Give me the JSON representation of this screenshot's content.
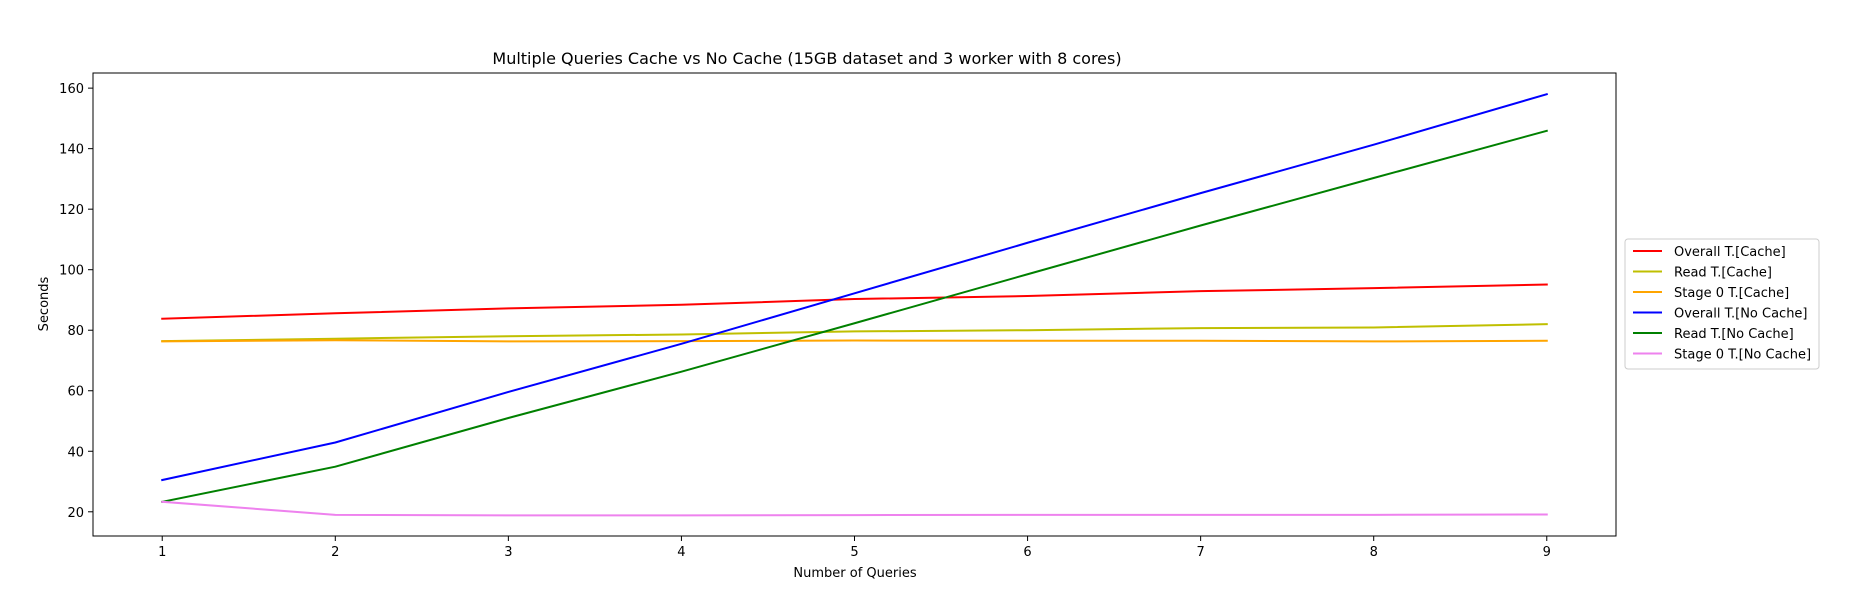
{
  "chart_data": {
    "type": "line",
    "title": "Multiple Queries Cache vs No Cache (15GB dataset and 3 worker with 8 cores)",
    "xlabel": "Number of Queries",
    "ylabel": "Seconds",
    "x": [
      1,
      2,
      3,
      4,
      5,
      6,
      7,
      8,
      9
    ],
    "xlim": [
      0.6,
      9.4
    ],
    "ylim": [
      12,
      165
    ],
    "xticks": [
      "1",
      "2",
      "3",
      "4",
      "5",
      "6",
      "7",
      "8",
      "9"
    ],
    "yticks": [
      "20",
      "40",
      "60",
      "80",
      "100",
      "120",
      "140",
      "160"
    ],
    "grid": false,
    "legend_position": "center-right-outside",
    "series": [
      {
        "name": "Overall T.[Cache]",
        "color": "#ff0000",
        "values": [
          83.8,
          85.6,
          87.2,
          88.4,
          90.3,
          91.3,
          92.9,
          93.9,
          95.1
        ]
      },
      {
        "name": "Read T.[Cache]",
        "color": "#bfbf00",
        "values": [
          76.4,
          77.2,
          78.0,
          78.6,
          79.6,
          80.0,
          80.7,
          80.9,
          82.0
        ]
      },
      {
        "name": "Stage 0 T.[Cache]",
        "color": "#ffa500",
        "values": [
          76.3,
          76.7,
          76.3,
          76.4,
          76.6,
          76.5,
          76.5,
          76.3,
          76.5
        ]
      },
      {
        "name": "Overall T.[No Cache]",
        "color": "#0000ff",
        "values": [
          30.5,
          42.9,
          59.6,
          75.5,
          92.2,
          108.9,
          125.3,
          141.3,
          158.0
        ]
      },
      {
        "name": "Read T.[No Cache]",
        "color": "#008000",
        "values": [
          23.3,
          34.9,
          51.0,
          66.3,
          82.3,
          98.5,
          114.6,
          130.3,
          145.9
        ]
      },
      {
        "name": "Stage 0 T.[No Cache]",
        "color": "#ee82ee",
        "values": [
          23.3,
          19.0,
          18.8,
          18.8,
          18.9,
          19.0,
          19.0,
          19.0,
          19.1
        ]
      }
    ]
  }
}
